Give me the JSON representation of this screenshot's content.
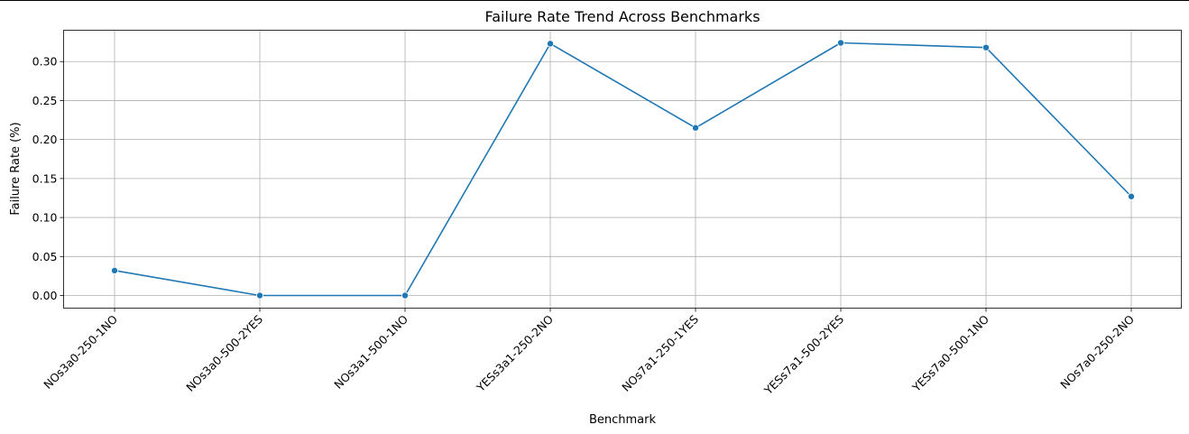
{
  "chart_data": {
    "type": "line",
    "title": "Failure Rate Trend Across Benchmarks",
    "xlabel": "Benchmark",
    "ylabel": "Failure Rate (%)",
    "categories": [
      "NOs3a0-250-1NO",
      "NOs3a0-500-2YES",
      "NOs3a1-500-1NO",
      "YESs3a1-250-2NO",
      "NOs7a1-250-1YES",
      "YESs7a1-500-2YES",
      "YESs7a0-500-1NO",
      "NOs7a0-250-2NO"
    ],
    "values": [
      0.032,
      0.0,
      0.0,
      0.323,
      0.215,
      0.324,
      0.318,
      0.127
    ],
    "yticks": [
      0.0,
      0.05,
      0.1,
      0.15,
      0.2,
      0.25,
      0.3
    ],
    "ytick_labels": [
      "0.00",
      "0.05",
      "0.10",
      "0.15",
      "0.20",
      "0.25",
      "0.30"
    ],
    "ylim": [
      -0.0162,
      0.3402
    ],
    "grid": true,
    "line_color": "#1f77b4",
    "marker": "circle"
  }
}
